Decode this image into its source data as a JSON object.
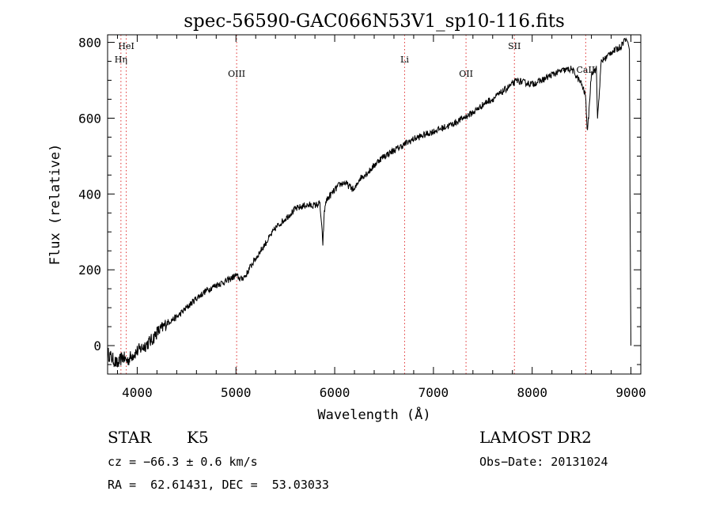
{
  "chart_data": {
    "type": "line",
    "title": "spec-56590-GAC066N53V1_sp10-116.fits",
    "xlabel": "Wavelength (Å)",
    "ylabel": "Flux (relative)",
    "xlim": [
      3700,
      9100
    ],
    "ylim": [
      -75,
      820
    ],
    "xticks": [
      4000,
      5000,
      6000,
      7000,
      8000,
      9000
    ],
    "yticks": [
      0,
      200,
      400,
      600,
      800
    ],
    "grid": false,
    "line_color": "#000000",
    "marker_color": "#e03030",
    "series": [
      {
        "x": [
          3700,
          3750,
          3800,
          3850,
          3900,
          3950,
          4000,
          4050,
          4100,
          4150,
          4200,
          4250,
          4300,
          4400,
          4500,
          4600,
          4700,
          4800,
          4900,
          5000,
          5050,
          5100,
          5150,
          5200,
          5300,
          5400,
          5500,
          5600,
          5700,
          5800,
          5850,
          5880,
          5895,
          5910,
          5950,
          6000,
          6050,
          6100,
          6200,
          6250,
          6300,
          6350,
          6400,
          6450,
          6500,
          6600,
          6700,
          6800,
          6900,
          7000,
          7100,
          7200,
          7300,
          7400,
          7450,
          7500,
          7550,
          7600,
          7650,
          7700,
          7750,
          7800,
          7850,
          7900,
          8000,
          8100,
          8200,
          8300,
          8400,
          8450,
          8500,
          8540,
          8560,
          8600,
          8650,
          8662,
          8700,
          8750,
          8800,
          8850,
          8900,
          8930,
          8950,
          8970,
          8985,
          8990,
          9000
        ],
        "y": [
          -20,
          -35,
          -50,
          -30,
          -40,
          -25,
          -15,
          -5,
          5,
          15,
          35,
          45,
          60,
          75,
          100,
          125,
          145,
          160,
          170,
          185,
          175,
          185,
          210,
          230,
          270,
          310,
          335,
          360,
          370,
          370,
          375,
          270,
          350,
          380,
          395,
          410,
          425,
          430,
          410,
          440,
          450,
          460,
          475,
          490,
          500,
          515,
          530,
          545,
          555,
          565,
          575,
          585,
          600,
          615,
          625,
          635,
          645,
          650,
          660,
          670,
          680,
          690,
          700,
          695,
          690,
          700,
          715,
          725,
          730,
          710,
          690,
          660,
          560,
          720,
          730,
          600,
          750,
          760,
          775,
          780,
          790,
          805,
          810,
          800,
          780,
          400,
          0
        ]
      }
    ],
    "spectral_lines": [
      {
        "label": "HeI",
        "wavelength": 3889
      },
      {
        "label": "Hη",
        "wavelength": 3835
      },
      {
        "label": "OIII",
        "wavelength": 5007
      },
      {
        "label": "Li",
        "wavelength": 6708
      },
      {
        "label": "OII",
        "wavelength": 7330
      },
      {
        "label": "SII",
        "wavelength": 7820
      },
      {
        "label": "CaII",
        "wavelength": 8542
      }
    ]
  },
  "info": {
    "object_type": "STAR",
    "subclass": "K5",
    "survey": "LAMOST DR2",
    "cz": "cz = −66.3 ± 0.6 km/s",
    "obs_date": "Obs−Date: 20131024",
    "coords": "RA =  62.61431, DEC =  53.03033"
  }
}
